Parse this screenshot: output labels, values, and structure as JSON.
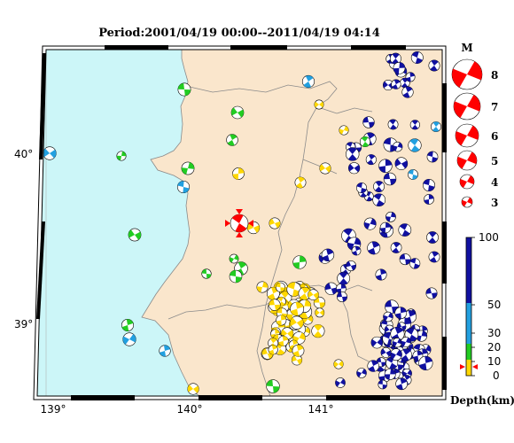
{
  "title": "Period:2001/04/19 00:00--2011/04/19 04:14",
  "axes": {
    "lon_ticks": [
      "139°",
      "140°",
      "141°"
    ],
    "lat_ticks": [
      "40°",
      "39°"
    ]
  },
  "magnitude_legend": {
    "label": "M",
    "values": [
      "8",
      "7",
      "6",
      "5",
      "4",
      "3"
    ]
  },
  "depth_scale": {
    "label": "Depth(km)",
    "ticks": [
      "100",
      "50",
      "30",
      "20",
      "10",
      "0"
    ],
    "colors": {
      "shallow": "#ffd700",
      "mid_shallow": "#22cc22",
      "mid": "#22a0e0",
      "deep": "#1010a0"
    }
  },
  "colors": {
    "sea": "#ccf6f8",
    "land": "#fae6cc",
    "main_event": "#ff0000",
    "border": "#8a8a8a"
  },
  "main_event": {
    "lon": 140.35,
    "lat": 39.58
  }
}
